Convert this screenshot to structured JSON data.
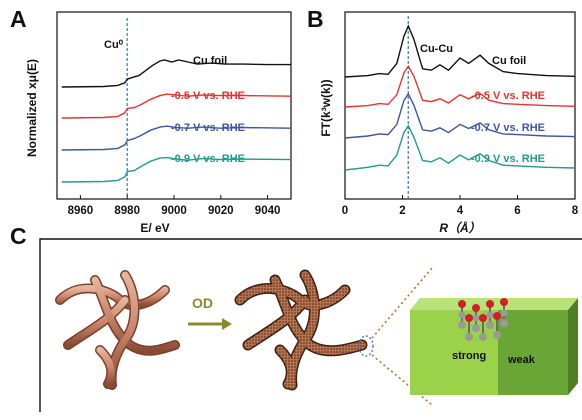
{
  "panels": {
    "a": {
      "letter": "A"
    },
    "b": {
      "letter": "B"
    },
    "c": {
      "letter": "C"
    }
  },
  "chart_data": [
    {
      "type": "line",
      "panel": "A",
      "xlabel": "E/ eV",
      "ylabel": "Normalized xμ(E)",
      "xlim": [
        8950,
        9050
      ],
      "xticks": [
        8960,
        8980,
        9000,
        9020,
        9040
      ],
      "yticks": "none",
      "annotation": "Cu⁰",
      "reference_line_x": 8980,
      "series": [
        {
          "name": "Cu foil",
          "color": "#111111",
          "offset": 3,
          "points": [
            [
              8952,
              0
            ],
            [
              8970,
              0.01
            ],
            [
              8976,
              0.03
            ],
            [
              8979,
              0.08
            ],
            [
              8980,
              0.15
            ],
            [
              8982,
              0.18
            ],
            [
              8985,
              0.22
            ],
            [
              8988,
              0.32
            ],
            [
              8991,
              0.42
            ],
            [
              8994,
              0.5
            ],
            [
              8996,
              0.52
            ],
            [
              8999,
              0.48
            ],
            [
              9002,
              0.52
            ],
            [
              9006,
              0.48
            ],
            [
              9010,
              0.44
            ],
            [
              9016,
              0.46
            ],
            [
              9022,
              0.44
            ],
            [
              9030,
              0.44
            ],
            [
              9040,
              0.43
            ],
            [
              9050,
              0.43
            ]
          ]
        },
        {
          "name": "-0.5 V vs. RHE",
          "color": "#e8332c",
          "offset": 2,
          "points": [
            [
              8952,
              0
            ],
            [
              8970,
              0.01
            ],
            [
              8976,
              0.03
            ],
            [
              8979,
              0.1
            ],
            [
              8980,
              0.18
            ],
            [
              8983,
              0.2
            ],
            [
              8986,
              0.26
            ],
            [
              8990,
              0.36
            ],
            [
              8994,
              0.43
            ],
            [
              8997,
              0.46
            ],
            [
              9001,
              0.44
            ],
            [
              9006,
              0.42
            ],
            [
              9012,
              0.44
            ],
            [
              9020,
              0.43
            ],
            [
              9030,
              0.43
            ],
            [
              9050,
              0.42
            ]
          ]
        },
        {
          "name": "-0.7 V vs. RHE",
          "color": "#3c55a5",
          "offset": 1,
          "points": [
            [
              8952,
              0
            ],
            [
              8970,
              0.01
            ],
            [
              8976,
              0.03
            ],
            [
              8979,
              0.1
            ],
            [
              8980,
              0.18
            ],
            [
              8983,
              0.22
            ],
            [
              8986,
              0.28
            ],
            [
              8990,
              0.38
            ],
            [
              8994,
              0.44
            ],
            [
              8997,
              0.46
            ],
            [
              9001,
              0.43
            ],
            [
              9006,
              0.42
            ],
            [
              9012,
              0.44
            ],
            [
              9020,
              0.42
            ],
            [
              9030,
              0.43
            ],
            [
              9050,
              0.42
            ]
          ]
        },
        {
          "name": "-0.9 V vs. RHE",
          "color": "#1f9c8c",
          "offset": 0,
          "points": [
            [
              8952,
              0
            ],
            [
              8970,
              0.01
            ],
            [
              8976,
              0.03
            ],
            [
              8979,
              0.1
            ],
            [
              8980,
              0.2
            ],
            [
              8983,
              0.22
            ],
            [
              8986,
              0.3
            ],
            [
              8990,
              0.4
            ],
            [
              8994,
              0.46
            ],
            [
              8997,
              0.47
            ],
            [
              9001,
              0.44
            ],
            [
              9006,
              0.42
            ],
            [
              9012,
              0.45
            ],
            [
              9020,
              0.43
            ],
            [
              9030,
              0.44
            ],
            [
              9050,
              0.43
            ]
          ]
        }
      ]
    },
    {
      "type": "line",
      "panel": "B",
      "xlabel": "R（Å）",
      "ylabel": "FT(k³w(k))",
      "xlim": [
        0,
        8
      ],
      "xticks": [
        0,
        2,
        4,
        6,
        8
      ],
      "yticks": "none",
      "annotation": "Cu-Cu",
      "reference_line_x": 2.2,
      "series": [
        {
          "name": "Cu foil",
          "color": "#111111",
          "offset": 3,
          "points": [
            [
              0,
              0
            ],
            [
              0.8,
              0.02
            ],
            [
              1.2,
              0.05
            ],
            [
              1.5,
              0.04
            ],
            [
              1.8,
              0.2
            ],
            [
              2.05,
              0.6
            ],
            [
              2.2,
              0.75
            ],
            [
              2.4,
              0.55
            ],
            [
              2.7,
              0.12
            ],
            [
              3.0,
              0.1
            ],
            [
              3.3,
              0.18
            ],
            [
              3.6,
              0.1
            ],
            [
              4.0,
              0.28
            ],
            [
              4.3,
              0.2
            ],
            [
              4.7,
              0.32
            ],
            [
              5.0,
              0.2
            ],
            [
              5.5,
              0.08
            ],
            [
              6.0,
              0.05
            ],
            [
              7.0,
              0.02
            ],
            [
              8,
              0.01
            ]
          ]
        },
        {
          "name": "-0.5 V vs. RHE",
          "color": "#e8332c",
          "offset": 2,
          "points": [
            [
              0,
              0
            ],
            [
              0.8,
              0.02
            ],
            [
              1.2,
              0.05
            ],
            [
              1.5,
              0.04
            ],
            [
              1.8,
              0.18
            ],
            [
              2.05,
              0.5
            ],
            [
              2.2,
              0.6
            ],
            [
              2.4,
              0.45
            ],
            [
              2.7,
              0.1
            ],
            [
              3.0,
              0.08
            ],
            [
              3.3,
              0.12
            ],
            [
              3.6,
              0.06
            ],
            [
              4.0,
              0.18
            ],
            [
              4.3,
              0.12
            ],
            [
              4.7,
              0.2
            ],
            [
              5.0,
              0.1
            ],
            [
              5.5,
              0.05
            ],
            [
              6.0,
              0.04
            ],
            [
              7.0,
              0.02
            ],
            [
              8,
              0.01
            ]
          ]
        },
        {
          "name": "-0.7 V vs. RHE",
          "color": "#3c55a5",
          "offset": 1,
          "points": [
            [
              0,
              0
            ],
            [
              0.8,
              0.03
            ],
            [
              1.2,
              0.06
            ],
            [
              1.5,
              0.05
            ],
            [
              1.8,
              0.2
            ],
            [
              2.05,
              0.55
            ],
            [
              2.2,
              0.65
            ],
            [
              2.4,
              0.48
            ],
            [
              2.7,
              0.12
            ],
            [
              3.0,
              0.1
            ],
            [
              3.3,
              0.15
            ],
            [
              3.6,
              0.08
            ],
            [
              4.0,
              0.2
            ],
            [
              4.3,
              0.14
            ],
            [
              4.7,
              0.22
            ],
            [
              5.0,
              0.12
            ],
            [
              5.5,
              0.06
            ],
            [
              6.0,
              0.05
            ],
            [
              7.0,
              0.03
            ],
            [
              8,
              0.02
            ]
          ]
        },
        {
          "name": "-0.9 V vs. RHE",
          "color": "#1f9c8c",
          "offset": 0,
          "points": [
            [
              0,
              0
            ],
            [
              0.8,
              0.04
            ],
            [
              1.2,
              0.07
            ],
            [
              1.5,
              0.06
            ],
            [
              1.8,
              0.22
            ],
            [
              2.05,
              0.55
            ],
            [
              2.2,
              0.65
            ],
            [
              2.4,
              0.48
            ],
            [
              2.7,
              0.14
            ],
            [
              3.0,
              0.12
            ],
            [
              3.3,
              0.18
            ],
            [
              3.6,
              0.1
            ],
            [
              4.0,
              0.22
            ],
            [
              4.3,
              0.15
            ],
            [
              4.7,
              0.24
            ],
            [
              5.0,
              0.14
            ],
            [
              5.5,
              0.07
            ],
            [
              6.0,
              0.06
            ],
            [
              7.0,
              0.04
            ],
            [
              8,
              0.03
            ]
          ]
        }
      ]
    }
  ],
  "schematic": {
    "arrow_label": "OD",
    "block_labels": {
      "left": "strong",
      "right": "weak"
    },
    "colors": {
      "copper": "#c9866b",
      "copper_dark": "#8a4b34",
      "arrow": "#8c8a2a",
      "block_left": "#9bd24a",
      "block_right": "#6aa635",
      "dotted_line": "#c8701a",
      "atom_red": "#d11f2a",
      "atom_grey": "#9a9a9a"
    }
  }
}
